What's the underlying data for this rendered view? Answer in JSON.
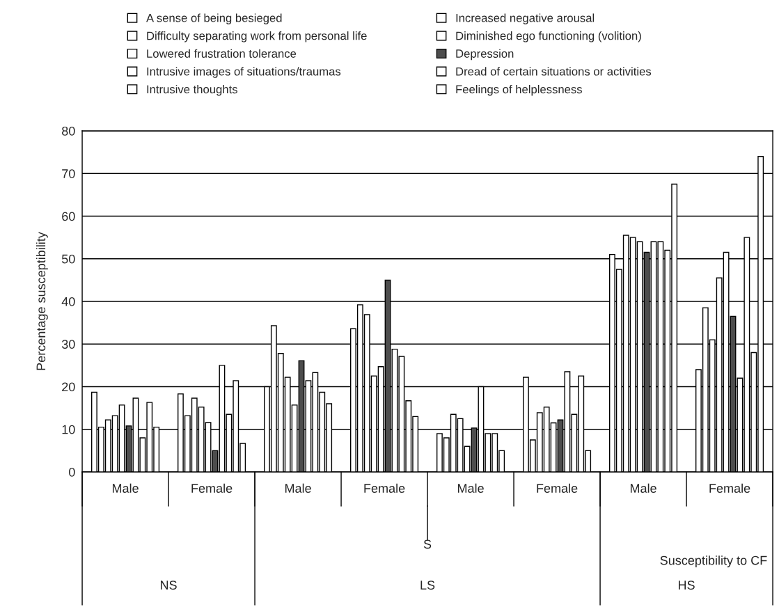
{
  "chart_data": {
    "type": "bar",
    "ylabel": "Percentage susceptibility",
    "xlabel": "Susceptibility to CF",
    "categories": [
      "Male",
      "Female",
      "Male",
      "Female",
      "Male",
      "Female",
      "Male",
      "Female"
    ],
    "annotations": [
      "NS",
      "LS",
      "S",
      "HS"
    ],
    "ylim": [
      0,
      80
    ],
    "yticks": [
      0,
      10,
      20,
      30,
      40,
      50,
      60,
      70,
      80
    ],
    "grid": "y",
    "legend": "top",
    "series": [
      {
        "name": "A sense of being besieged",
        "color": "#ffffff",
        "values": [
          18.7,
          18.3,
          20,
          33.6,
          9,
          22.2,
          51,
          24
        ]
      },
      {
        "name": "Increased negative arousal",
        "color": "#ffffff",
        "values": [
          10.5,
          13.2,
          34.3,
          39.2,
          8,
          7.5,
          47.5,
          38.5
        ]
      },
      {
        "name": "Difficulty separating work from personal life",
        "color": "#ffffff",
        "values": [
          12.2,
          17.3,
          27.8,
          36.9,
          13.5,
          13.9,
          55.5,
          31
        ]
      },
      {
        "name": "Diminished ego functioning (volition)",
        "color": "#ffffff",
        "values": [
          13.2,
          15.2,
          22.2,
          22.5,
          12.5,
          15.2,
          55,
          45.5
        ]
      },
      {
        "name": "Lowered frustration tolerance",
        "color": "#ffffff",
        "values": [
          15.7,
          11.6,
          15.7,
          24.7,
          6,
          11.5,
          54,
          51.5
        ]
      },
      {
        "name": "Depression",
        "color": "#4d4d4d",
        "values": [
          10.8,
          5,
          26.1,
          45,
          10.3,
          12.2,
          51.5,
          36.5
        ]
      },
      {
        "name": "Intrusive images of situations/traumas",
        "color": "#ffffff",
        "values": [
          17.3,
          25,
          21.4,
          28.8,
          20,
          23.5,
          54,
          22
        ]
      },
      {
        "name": "Dread of certain situations or activities",
        "color": "#ffffff",
        "values": [
          8,
          13.5,
          23.3,
          27.1,
          9,
          13.5,
          54,
          55
        ]
      },
      {
        "name": "Intrusive thoughts",
        "color": "#ffffff",
        "values": [
          16.3,
          21.4,
          18.7,
          16.7,
          9,
          22.5,
          52,
          28
        ]
      },
      {
        "name": "Feelings of helplessness",
        "color": "#ffffff",
        "values": [
          10.5,
          6.7,
          16,
          13,
          5,
          5,
          67.5,
          74
        ]
      }
    ]
  }
}
